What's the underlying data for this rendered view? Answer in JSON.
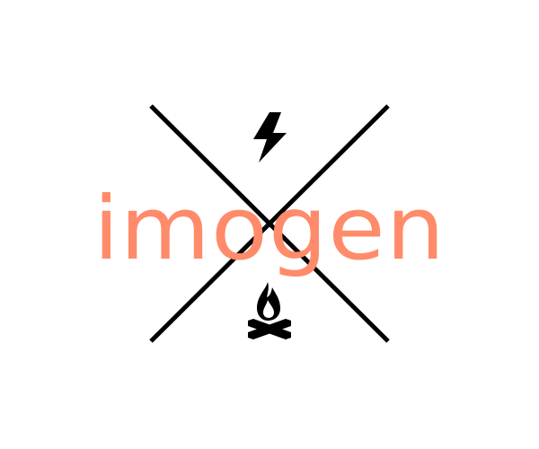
{
  "logo": {
    "wordmark": "imogen",
    "colors": {
      "wordmark": "#ff8b6a",
      "lines": "#000000",
      "icons": "#000000",
      "background": "#ffffff"
    },
    "icons": {
      "top": "lightning-bolt-icon",
      "bottom": "campfire-icon"
    }
  }
}
